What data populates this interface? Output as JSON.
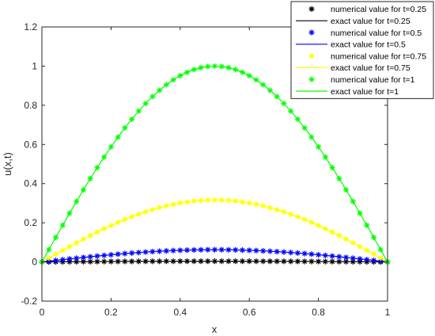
{
  "chart_data": {
    "type": "line",
    "xlabel": "x",
    "ylabel": "u(x,t)",
    "xlim": [
      0,
      1
    ],
    "ylim": [
      -0.2,
      1.2
    ],
    "xticks": [
      0,
      0.2,
      0.4,
      0.6,
      0.8,
      1
    ],
    "xtick_labels": [
      "0",
      "0.2",
      "0.4",
      "0.6",
      "0.8",
      "1"
    ],
    "yticks": [
      -0.2,
      0,
      0.2,
      0.4,
      0.6,
      0.8,
      1,
      1.2
    ],
    "ytick_labels": [
      "-0.2",
      "0",
      "0.2",
      "0.4",
      "0.6",
      "0.8",
      "1",
      "1.2"
    ],
    "grid": false,
    "legend_position": "top-right",
    "x_points": "0 to 1 in steps of 0.02 (51 points)",
    "series": [
      {
        "name": "numerical value for t=0.25",
        "style": "markers",
        "marker": "*",
        "color": "#000000",
        "t": 0.25,
        "peak": 0.004,
        "formula": "t^4 sin(pi x)"
      },
      {
        "name": "exact value for t=0.25",
        "style": "line",
        "color": "#000000",
        "t": 0.25,
        "peak": 0.004,
        "formula": "t^4 sin(pi x)"
      },
      {
        "name": "numerical value for t=0.5",
        "style": "markers",
        "marker": "*",
        "color": "#0000ff",
        "t": 0.5,
        "peak": 0.0625,
        "formula": "t^4 sin(pi x)"
      },
      {
        "name": "exact value for t=0.5",
        "style": "line",
        "color": "#0000ff",
        "t": 0.5,
        "peak": 0.0625,
        "formula": "t^4 sin(pi x)"
      },
      {
        "name": "numerical value for t=0.75",
        "style": "markers",
        "marker": "*",
        "color": "#ffff00",
        "t": 0.75,
        "peak": 0.316,
        "formula": "t^4 sin(pi x)"
      },
      {
        "name": "exact value for t=0.75",
        "style": "line",
        "color": "#ffff00",
        "t": 0.75,
        "peak": 0.316,
        "formula": "t^4 sin(pi x)"
      },
      {
        "name": "numerical value for t=1",
        "style": "markers",
        "marker": "*",
        "color": "#00ff00",
        "t": 1,
        "peak": 1.0,
        "formula": "t^4 sin(pi x)"
      },
      {
        "name": "exact value for t=1",
        "style": "line",
        "color": "#00ff00",
        "t": 1,
        "peak": 1.0,
        "formula": "t^4 sin(pi x)"
      }
    ]
  }
}
